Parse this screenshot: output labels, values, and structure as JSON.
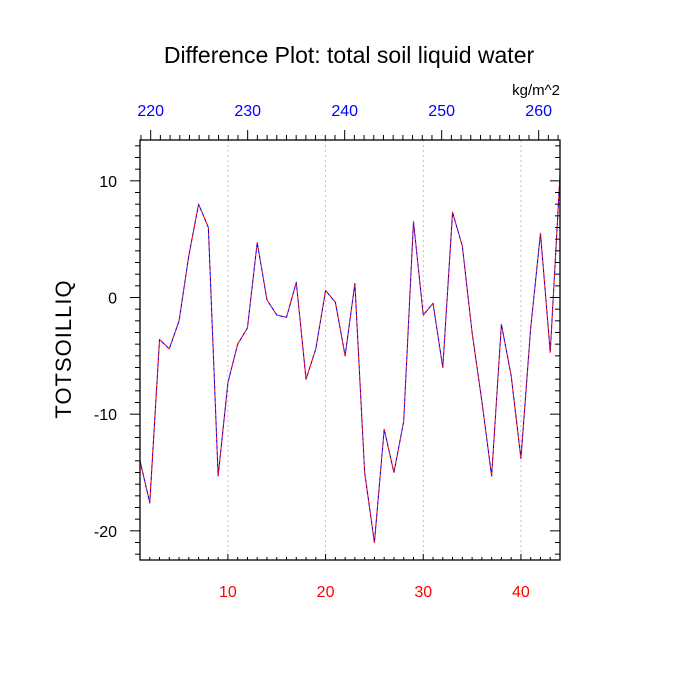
{
  "chart_data": {
    "type": "line",
    "title": "Difference Plot: total soil liquid water",
    "units": "kg/m^2",
    "ylabel": "TOTSOILLIQ",
    "xlabel": "",
    "x_bottom": {
      "range": [
        1,
        44
      ],
      "ticks": [
        10,
        20,
        30,
        40
      ],
      "tick_labels": [
        "10",
        "20",
        "30",
        "40"
      ],
      "color": "#ff0000"
    },
    "x_top": {
      "range": [
        218.9,
        262.2
      ],
      "ticks": [
        220,
        230,
        240,
        250,
        260
      ],
      "tick_labels": [
        "220",
        "230",
        "240",
        "250",
        "260"
      ],
      "color": "#0000ff"
    },
    "ylim": [
      -22.5,
      13.5
    ],
    "yticks": [
      -20,
      -10,
      0,
      10
    ],
    "ytick_labels": [
      "-20",
      "-10",
      "0",
      "10"
    ],
    "vertical_gridlines_at": [
      10,
      20,
      30,
      40
    ],
    "series": [
      {
        "name": "TOTSOILLIQ difference",
        "style": "dashed",
        "colors": [
          "#0000ff",
          "#ff0000"
        ],
        "x": [
          1,
          2,
          3,
          4,
          5,
          6,
          7,
          8,
          9,
          10,
          11,
          12,
          13,
          14,
          15,
          16,
          17,
          18,
          19,
          20,
          21,
          22,
          23,
          24,
          25,
          26,
          27,
          28,
          29,
          30,
          31,
          32,
          33,
          34,
          35,
          36,
          37,
          38,
          39,
          40,
          41,
          42,
          43,
          44
        ],
        "values": [
          -14.0,
          -17.6,
          -3.6,
          -4.4,
          -2.0,
          3.6,
          8.0,
          6.0,
          -15.3,
          -7.3,
          -4.0,
          -2.6,
          4.7,
          -0.2,
          -1.5,
          -1.7,
          1.3,
          -7.0,
          -4.4,
          0.6,
          -0.4,
          -5.0,
          1.2,
          -15.0,
          -21.0,
          -11.3,
          -15.0,
          -10.6,
          6.5,
          -1.5,
          -0.5,
          -6.0,
          7.3,
          4.4,
          -3.0,
          -8.9,
          -15.3,
          -2.3,
          -6.7,
          -13.8,
          -2.6,
          5.5,
          -4.7,
          10.5
        ]
      }
    ]
  }
}
